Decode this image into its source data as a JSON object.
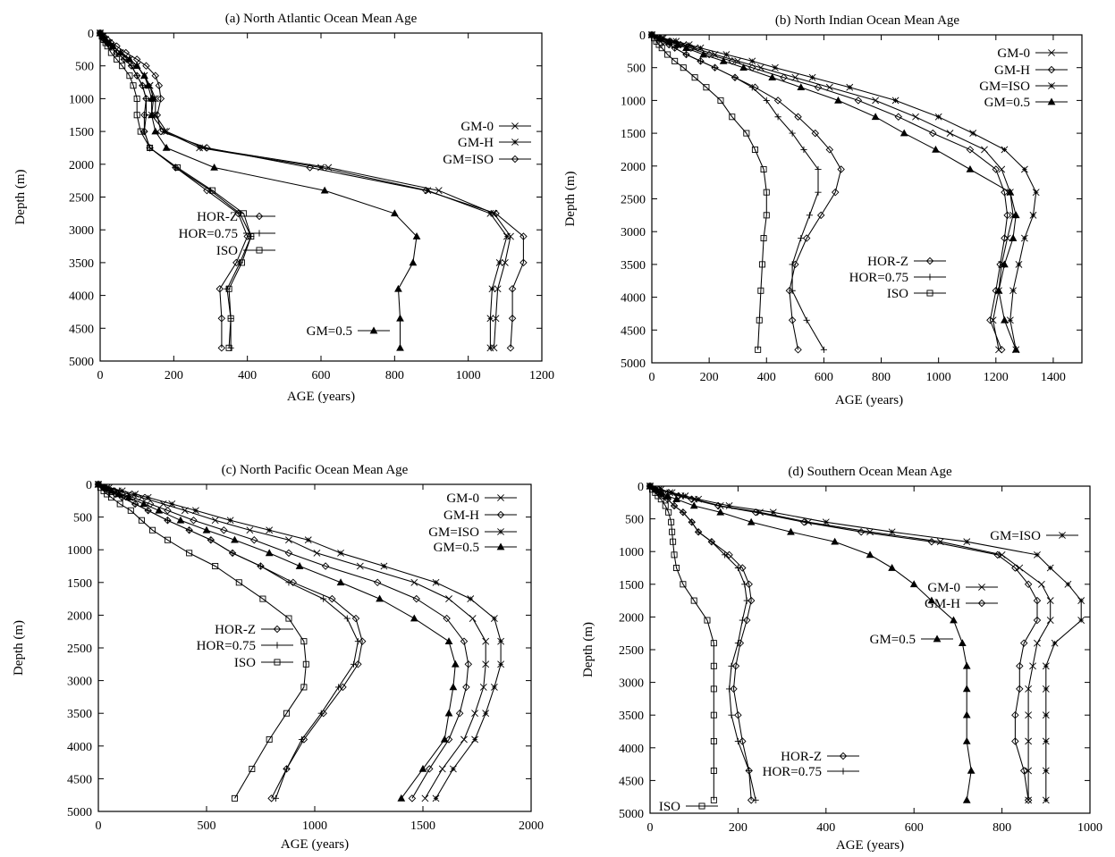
{
  "chart_data": [
    {
      "type": "line",
      "title": "(a) North Atlantic Ocean Mean Age",
      "xlabel": "AGE (years)",
      "ylabel": "Depth (m)",
      "xlim": [
        0,
        1200
      ],
      "ylim": [
        5000,
        0
      ],
      "xticks": [
        "0",
        "200",
        "400",
        "600",
        "800",
        "1000",
        "1200"
      ],
      "yticks": [
        "0",
        "500",
        "1000",
        "1500",
        "2000",
        "2500",
        "3000",
        "3500",
        "4000",
        "4500",
        "5000"
      ],
      "depths": [
        0,
        50,
        100,
        150,
        200,
        300,
        400,
        500,
        650,
        800,
        1000,
        1250,
        1500,
        1750,
        2050,
        2400,
        2750,
        3100,
        3500,
        3900,
        4350,
        4800
      ],
      "legend_groups": [
        {
          "position": "right-middle",
          "entries": [
            "GM-0",
            "GM-H",
            "GM=ISO"
          ]
        },
        {
          "position": "left-middle",
          "entries": [
            "HOR-Z",
            "HOR=0.75",
            "ISO"
          ]
        },
        {
          "position": "bottom-center",
          "entries": [
            "GM=0.5"
          ]
        }
      ],
      "series": [
        {
          "name": "GM-0",
          "marker": "x",
          "values": [
            0,
            8,
            15,
            25,
            35,
            55,
            80,
            100,
            120,
            135,
            150,
            150,
            180,
            280,
            620,
            920,
            1070,
            1115,
            1100,
            1080,
            1075,
            1070
          ]
        },
        {
          "name": "GM-H",
          "marker": "star",
          "values": [
            0,
            8,
            15,
            25,
            35,
            55,
            80,
            100,
            120,
            135,
            145,
            140,
            175,
            270,
            600,
            890,
            1060,
            1105,
            1085,
            1065,
            1060,
            1060
          ]
        },
        {
          "name": "GM=ISO",
          "marker": "diamond",
          "values": [
            0,
            10,
            20,
            30,
            45,
            70,
            100,
            125,
            150,
            160,
            165,
            155,
            165,
            290,
            570,
            885,
            1075,
            1150,
            1150,
            1120,
            1120,
            1115
          ]
        },
        {
          "name": "HOR-Z",
          "marker": "diamond",
          "values": [
            0,
            6,
            12,
            20,
            30,
            45,
            65,
            85,
            100,
            115,
            125,
            120,
            120,
            135,
            205,
            290,
            375,
            400,
            370,
            325,
            330,
            330
          ]
        },
        {
          "name": "HOR=0.75",
          "marker": "plus",
          "values": [
            0,
            6,
            12,
            20,
            30,
            45,
            65,
            85,
            100,
            115,
            125,
            125,
            120,
            135,
            205,
            300,
            380,
            410,
            380,
            345,
            355,
            355
          ]
        },
        {
          "name": "ISO",
          "marker": "square",
          "values": [
            0,
            5,
            10,
            15,
            20,
            30,
            45,
            60,
            80,
            90,
            100,
            100,
            110,
            135,
            210,
            305,
            390,
            410,
            385,
            350,
            355,
            350
          ]
        },
        {
          "name": "GM=0.5",
          "marker": "triangle",
          "values": [
            0,
            8,
            15,
            25,
            35,
            55,
            80,
            100,
            120,
            130,
            140,
            140,
            150,
            180,
            310,
            610,
            800,
            860,
            850,
            810,
            815,
            815
          ]
        }
      ]
    },
    {
      "type": "line",
      "title": "(b) North Indian Ocean Mean Age",
      "xlabel": "AGE (years)",
      "ylabel": "Depth (m)",
      "xlim": [
        0,
        1500
      ],
      "ylim": [
        5000,
        0
      ],
      "xticks": [
        "0",
        "200",
        "400",
        "600",
        "800",
        "1000",
        "1200",
        "1400"
      ],
      "yticks": [
        "0",
        "500",
        "1000",
        "1500",
        "2000",
        "2500",
        "3000",
        "3500",
        "4000",
        "4500",
        "5000"
      ],
      "depths": [
        0,
        50,
        100,
        150,
        200,
        300,
        400,
        500,
        650,
        800,
        1000,
        1250,
        1500,
        1750,
        2050,
        2400,
        2750,
        3100,
        3500,
        3900,
        4350,
        4800
      ],
      "legend_groups": [
        {
          "position": "top-right",
          "entries": [
            "GM-0",
            "GM-H",
            "GM=ISO",
            "GM=0.5"
          ]
        },
        {
          "position": "lower-middle",
          "entries": [
            "HOR-Z",
            "HOR=0.75",
            "ISO"
          ]
        }
      ],
      "series": [
        {
          "name": "GM-0",
          "marker": "x",
          "values": [
            0,
            35,
            75,
            110,
            150,
            220,
            300,
            380,
            500,
            620,
            780,
            920,
            1040,
            1160,
            1220,
            1250,
            1260,
            1240,
            1220,
            1210,
            1190,
            1210
          ]
        },
        {
          "name": "GM-H",
          "marker": "diamond",
          "values": [
            0,
            30,
            65,
            100,
            135,
            200,
            280,
            350,
            460,
            580,
            720,
            860,
            980,
            1110,
            1200,
            1230,
            1240,
            1230,
            1215,
            1200,
            1180,
            1220
          ]
        },
        {
          "name": "GM=ISO",
          "marker": "star",
          "values": [
            0,
            40,
            85,
            130,
            170,
            260,
            350,
            430,
            560,
            690,
            850,
            1000,
            1120,
            1230,
            1300,
            1340,
            1330,
            1300,
            1280,
            1260,
            1250,
            1270
          ]
        },
        {
          "name": "GM=0.5",
          "marker": "triangle",
          "values": [
            0,
            28,
            60,
            90,
            120,
            180,
            250,
            320,
            420,
            520,
            650,
            780,
            880,
            990,
            1110,
            1250,
            1270,
            1260,
            1230,
            1210,
            1230,
            1270
          ]
        },
        {
          "name": "HOR-Z",
          "marker": "diamond",
          "values": [
            0,
            18,
            40,
            60,
            80,
            120,
            170,
            220,
            290,
            360,
            440,
            510,
            570,
            620,
            660,
            640,
            590,
            540,
            500,
            480,
            490,
            510
          ]
        },
        {
          "name": "HOR=0.75",
          "marker": "plus",
          "values": [
            0,
            18,
            40,
            60,
            80,
            120,
            170,
            220,
            290,
            350,
            400,
            440,
            490,
            530,
            580,
            580,
            550,
            520,
            490,
            490,
            540,
            600
          ]
        },
        {
          "name": "ISO",
          "marker": "square",
          "values": [
            0,
            8,
            16,
            25,
            35,
            55,
            80,
            110,
            150,
            190,
            240,
            280,
            330,
            360,
            390,
            400,
            400,
            390,
            385,
            380,
            375,
            370
          ]
        }
      ]
    },
    {
      "type": "line",
      "title": "(c) North Pacific Ocean Mean Age",
      "xlabel": "AGE (years)",
      "ylabel": "Depth (m)",
      "xlim": [
        0,
        2000
      ],
      "ylim": [
        5000,
        0
      ],
      "xticks": [
        "0",
        "500",
        "1000",
        "1500",
        "2000"
      ],
      "yticks": [
        "0",
        "500",
        "1000",
        "1500",
        "2000",
        "2500",
        "3000",
        "3500",
        "4000",
        "4500",
        "5000"
      ],
      "depths": [
        0,
        50,
        100,
        150,
        200,
        300,
        400,
        550,
        700,
        850,
        1050,
        1250,
        1500,
        1750,
        2050,
        2400,
        2750,
        3100,
        3500,
        3900,
        4350,
        4800
      ],
      "legend_groups": [
        {
          "position": "top-right",
          "entries": [
            "GM-0",
            "GM-H",
            "GM=ISO",
            "GM=0.5"
          ]
        },
        {
          "position": "middle-left",
          "entries": [
            "HOR-Z",
            "HOR=0.75",
            "ISO"
          ]
        }
      ],
      "series": [
        {
          "name": "GM-0",
          "marker": "x",
          "values": [
            0,
            40,
            90,
            140,
            200,
            300,
            400,
            540,
            700,
            880,
            1010,
            1210,
            1460,
            1620,
            1730,
            1790,
            1790,
            1780,
            1740,
            1690,
            1590,
            1510
          ]
        },
        {
          "name": "GM-H",
          "marker": "diamond",
          "values": [
            0,
            30,
            70,
            110,
            160,
            240,
            320,
            440,
            580,
            720,
            880,
            1050,
            1290,
            1470,
            1610,
            1690,
            1710,
            1700,
            1670,
            1620,
            1530,
            1450
          ]
        },
        {
          "name": "GM=ISO",
          "marker": "star",
          "values": [
            0,
            50,
            110,
            170,
            230,
            340,
            450,
            610,
            790,
            970,
            1120,
            1320,
            1560,
            1720,
            1830,
            1860,
            1860,
            1830,
            1790,
            1740,
            1640,
            1560
          ]
        },
        {
          "name": "GM=0.5",
          "marker": "triangle",
          "values": [
            0,
            28,
            60,
            95,
            140,
            210,
            280,
            380,
            500,
            630,
            790,
            930,
            1120,
            1300,
            1460,
            1620,
            1650,
            1640,
            1620,
            1600,
            1500,
            1400
          ]
        },
        {
          "name": "HOR-Z",
          "marker": "diamond",
          "values": [
            0,
            22,
            50,
            80,
            110,
            170,
            230,
            320,
            420,
            520,
            620,
            750,
            900,
            1080,
            1190,
            1220,
            1200,
            1130,
            1040,
            950,
            870,
            800
          ]
        },
        {
          "name": "HOR=0.75",
          "marker": "plus",
          "values": [
            0,
            22,
            50,
            80,
            110,
            170,
            230,
            320,
            420,
            520,
            620,
            750,
            880,
            1040,
            1150,
            1200,
            1180,
            1110,
            1030,
            940,
            870,
            820
          ]
        },
        {
          "name": "ISO",
          "marker": "square",
          "values": [
            0,
            10,
            25,
            40,
            60,
            100,
            150,
            200,
            250,
            320,
            420,
            540,
            650,
            760,
            880,
            950,
            960,
            950,
            870,
            790,
            710,
            630
          ]
        }
      ]
    },
    {
      "type": "line",
      "title": "(d) Southern Ocean Mean Age",
      "xlabel": "AGE (years)",
      "ylabel": "Depth (m)",
      "xlim": [
        0,
        1000
      ],
      "ylim": [
        5000,
        0
      ],
      "xticks": [
        "0",
        "200",
        "400",
        "600",
        "800",
        "1000"
      ],
      "yticks": [
        "0",
        "500",
        "1000",
        "1500",
        "2000",
        "2500",
        "3000",
        "3500",
        "4000",
        "4500",
        "5000"
      ],
      "depths": [
        0,
        50,
        100,
        150,
        200,
        300,
        400,
        550,
        700,
        850,
        1050,
        1250,
        1500,
        1750,
        2050,
        2400,
        2750,
        3100,
        3500,
        3900,
        4350,
        4800
      ],
      "legend_groups": [
        {
          "position": "top-right",
          "entries": [
            "GM=ISO"
          ]
        },
        {
          "position": "right-middle",
          "entries": [
            "GM-0",
            "GM-H"
          ]
        },
        {
          "position": "middle",
          "entries": [
            "GM=0.5"
          ]
        },
        {
          "position": "bottom-center",
          "entries": [
            "HOR-Z",
            "HOR=0.75"
          ]
        },
        {
          "position": "bottom-left",
          "entries": [
            "ISO"
          ]
        }
      ],
      "series": [
        {
          "name": "GM-0",
          "marker": "x",
          "values": [
            0,
            20,
            45,
            70,
            100,
            160,
            250,
            360,
            500,
            660,
            800,
            840,
            890,
            910,
            910,
            880,
            870,
            860,
            860,
            860,
            860,
            860
          ]
        },
        {
          "name": "GM-H",
          "marker": "diamond",
          "values": [
            0,
            20,
            42,
            65,
            95,
            155,
            240,
            350,
            480,
            640,
            790,
            830,
            860,
            880,
            880,
            850,
            840,
            840,
            830,
            830,
            850,
            860
          ]
        },
        {
          "name": "GM=ISO",
          "marker": "star",
          "values": [
            0,
            25,
            50,
            80,
            110,
            180,
            280,
            400,
            550,
            720,
            880,
            910,
            950,
            980,
            980,
            920,
            900,
            900,
            900,
            900,
            900,
            900
          ]
        },
        {
          "name": "GM=0.5",
          "marker": "triangle",
          "values": [
            0,
            12,
            25,
            40,
            60,
            100,
            160,
            230,
            320,
            420,
            500,
            550,
            600,
            640,
            690,
            710,
            720,
            720,
            720,
            720,
            730,
            720
          ]
        },
        {
          "name": "HOR-Z",
          "marker": "diamond",
          "values": [
            0,
            10,
            20,
            30,
            40,
            55,
            75,
            95,
            110,
            140,
            180,
            210,
            225,
            230,
            220,
            205,
            195,
            190,
            200,
            210,
            225,
            230
          ]
        },
        {
          "name": "HOR=0.75",
          "marker": "plus",
          "values": [
            0,
            10,
            20,
            30,
            40,
            55,
            75,
            95,
            110,
            140,
            170,
            200,
            215,
            220,
            210,
            200,
            185,
            180,
            185,
            200,
            225,
            240
          ]
        },
        {
          "name": "ISO",
          "marker": "square",
          "values": [
            0,
            5,
            12,
            18,
            25,
            35,
            42,
            48,
            50,
            52,
            55,
            60,
            75,
            100,
            130,
            145,
            145,
            145,
            145,
            145,
            145,
            145
          ]
        }
      ]
    }
  ]
}
